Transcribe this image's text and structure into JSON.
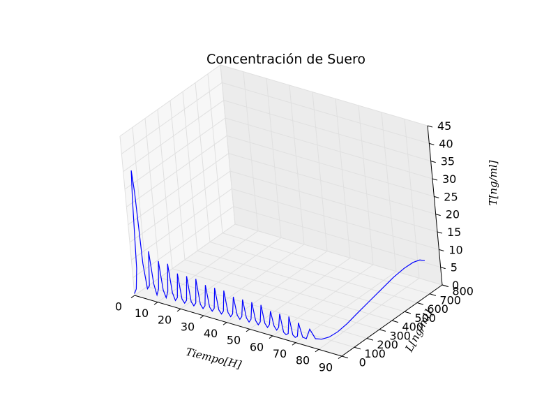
{
  "chart_data": {
    "type": "line3d",
    "title": "Concentración de Suero",
    "xlabel": "Tiempo[H]",
    "ylabel": "L[ng/ml]",
    "zlabel": "T[ng/ml]",
    "xlim": [
      0,
      90
    ],
    "ylim": [
      0,
      800
    ],
    "zlim": [
      0,
      45
    ],
    "xticks": [
      "0",
      "10",
      "20",
      "30",
      "40",
      "50",
      "60",
      "70",
      "80",
      "90"
    ],
    "yticks": [
      "0",
      "100",
      "200",
      "300",
      "400",
      "500",
      "600",
      "700",
      "800"
    ],
    "zticks": [
      "0",
      "5",
      "10",
      "15",
      "20",
      "25",
      "30",
      "35",
      "40",
      "45"
    ],
    "grid": true,
    "line_color": "#0000ff",
    "series": [
      {
        "x": [
          0,
          1,
          2,
          3,
          3.6,
          4.2,
          5,
          6,
          7,
          8,
          9,
          10,
          11,
          12,
          13,
          14,
          15,
          16,
          17,
          18,
          19,
          20,
          21,
          22,
          23,
          24,
          25,
          26,
          27,
          28,
          29,
          30,
          31,
          32,
          33,
          34,
          35,
          36,
          37,
          38,
          39,
          40,
          41,
          42,
          43,
          44,
          45,
          46,
          47,
          48,
          49,
          50,
          51,
          52,
          53,
          54,
          55,
          56,
          57,
          58,
          59,
          60,
          61,
          62,
          63,
          64,
          65,
          66,
          67,
          68,
          69,
          70,
          71,
          72,
          73,
          74,
          75,
          76,
          77,
          78,
          79,
          80,
          81,
          82,
          83,
          84,
          85,
          86,
          87,
          88
        ],
        "y": [
          0,
          0,
          0,
          0,
          0,
          0,
          0,
          0,
          0,
          0,
          0,
          0,
          0,
          0,
          0,
          0,
          0,
          0,
          0,
          0,
          0,
          0,
          0,
          0,
          0,
          0,
          0,
          0,
          0,
          0,
          0,
          0,
          0,
          0,
          0,
          0,
          0,
          0,
          0,
          0,
          0,
          0,
          0,
          0,
          0,
          0,
          0,
          0,
          0,
          0,
          0,
          0,
          0,
          0,
          0,
          0,
          0,
          0,
          0,
          0,
          0,
          0,
          0,
          0,
          0,
          0,
          0,
          0,
          0,
          0,
          0,
          0,
          0,
          0,
          5,
          15,
          30,
          50,
          80,
          120,
          170,
          230,
          300,
          380,
          460,
          540,
          610,
          665,
          700,
          720
        ],
        "z": [
          0.5,
          2,
          8,
          28,
          36,
          30,
          10,
          3,
          4,
          14,
          5,
          2,
          4,
          12,
          4,
          2,
          4,
          12,
          4,
          2,
          3,
          10,
          3,
          2,
          3,
          10,
          3,
          2,
          3,
          10,
          3,
          2,
          3,
          9,
          3,
          2,
          3,
          9,
          3,
          2,
          3,
          9,
          3,
          2,
          3,
          8,
          3,
          2,
          3,
          8,
          3,
          2,
          3,
          8,
          3,
          2,
          3,
          8,
          3,
          2,
          3,
          7,
          3,
          2,
          3,
          7,
          2,
          1.5,
          2,
          7,
          2,
          1.5,
          2,
          6,
          2,
          1.5,
          4,
          1,
          0.3,
          0.1,
          0.5,
          1.5,
          3,
          4.5,
          6,
          7.5,
          8.5,
          9,
          9,
          8.5
        ]
      }
    ]
  }
}
